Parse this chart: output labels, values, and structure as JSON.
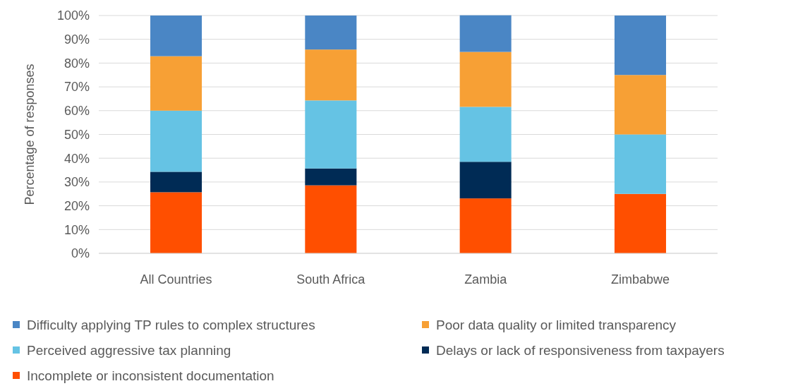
{
  "chart_data": {
    "type": "bar",
    "stacked": true,
    "ylabel": "Percentage of responses",
    "categories": [
      "All Countries",
      "South Africa",
      "Zambia",
      "Zimbabwe"
    ],
    "series": [
      {
        "name": "Incomplete or inconsistent documentation",
        "color": "#ff4f00",
        "values": [
          25.7,
          28.6,
          23.1,
          25
        ]
      },
      {
        "name": "Delays or lack of responsiveness from taxpayers",
        "color": "#002b55",
        "values": [
          8.6,
          7.1,
          15.4,
          0
        ]
      },
      {
        "name": "Perceived aggressive tax planning",
        "color": "#65c3e4",
        "values": [
          25.7,
          28.6,
          23.1,
          25
        ]
      },
      {
        "name": "Poor data quality or limited transparency",
        "color": "#f7a035",
        "values": [
          22.9,
          21.4,
          23.1,
          25
        ]
      },
      {
        "name": "Difficulty applying TP rules to complex structures",
        "color": "#4a86c5",
        "values": [
          17.1,
          14.3,
          15.4,
          25
        ]
      }
    ],
    "ylim": [
      0,
      100
    ],
    "yticks": [
      {
        "value": 0,
        "label": "0%"
      },
      {
        "value": 10,
        "label": "10%"
      },
      {
        "value": 20,
        "label": "20%"
      },
      {
        "value": 30,
        "label": "30%"
      },
      {
        "value": 40,
        "label": "40%"
      },
      {
        "value": 50,
        "label": "50%"
      },
      {
        "value": 60,
        "label": "60%"
      },
      {
        "value": 70,
        "label": "70%"
      },
      {
        "value": 80,
        "label": "80%"
      },
      {
        "value": 90,
        "label": "90%"
      },
      {
        "value": 100,
        "label": "100%"
      }
    ],
    "grid": "y",
    "legend": "bottom"
  }
}
